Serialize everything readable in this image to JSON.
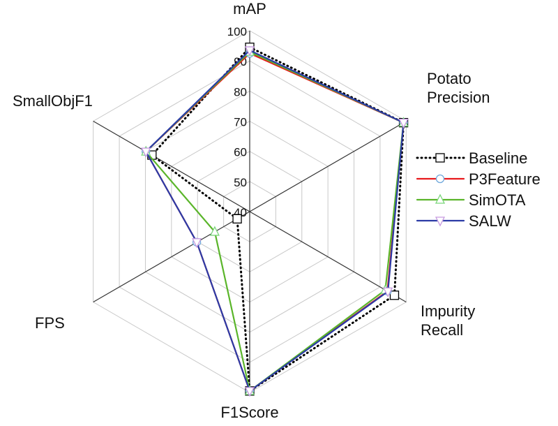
{
  "chart_data": {
    "type": "radar",
    "axes": [
      "mAP",
      "Potato\nPrecision",
      "Impurity\nRecall",
      "F1Score",
      "FPS",
      "SmallObjF1"
    ],
    "rlim": [
      40,
      100
    ],
    "ticks": [
      40,
      50,
      60,
      70,
      80,
      90,
      100
    ],
    "grid": true,
    "legend_position": "right",
    "series": [
      {
        "name": "Baseline",
        "values": [
          94.5,
          99,
          95.5,
          99.5,
          44.8,
          77.5
        ],
        "color": "#000000",
        "style": "dotted",
        "marker": "square"
      },
      {
        "name": "P3Feature",
        "values": [
          92.5,
          99,
          92.8,
          99.5,
          60.3,
          79.8
        ],
        "color": "#e8191c",
        "style": "solid",
        "marker": "circle"
      },
      {
        "name": "SimOTA",
        "values": [
          93,
          99,
          92,
          99.5,
          53.4,
          79.8
        ],
        "color": "#5ab52a",
        "style": "solid",
        "marker": "triangle-up"
      },
      {
        "name": "SALW",
        "values": [
          93.5,
          99,
          93,
          99.5,
          60.3,
          79.8
        ],
        "color": "#2b3ba6",
        "style": "solid",
        "marker": "triangle-down"
      }
    ]
  }
}
